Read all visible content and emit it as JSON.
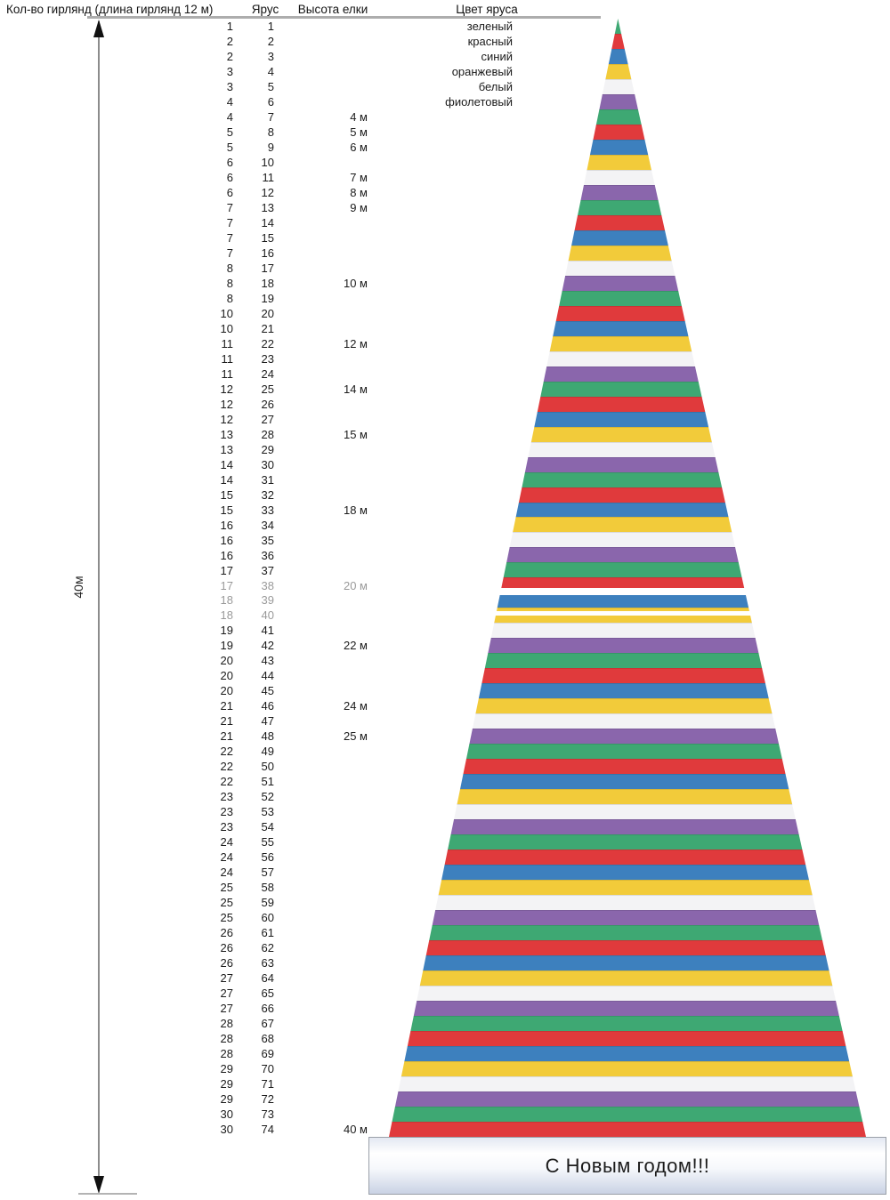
{
  "header": {
    "garlands": "Кол-во гирлянд (длина гирлянд 12 м)",
    "tier": "Ярус",
    "height": "Высота елки",
    "color": "Цвет яруса"
  },
  "measure": {
    "label": "40м"
  },
  "banner": {
    "text": "С Новым годом!!!"
  },
  "tier_colors": {
    "names": [
      "зеленый",
      "красный",
      "синий",
      "оранжевый",
      "белый",
      "фиолетовый"
    ],
    "hex": [
      "#3EA873",
      "#E03A3C",
      "#3D80BE",
      "#F2CB3A",
      "#F3F3F5",
      "#8A66AC"
    ]
  },
  "table": {
    "tiers_total": 74,
    "garlands_by_tier": [
      1,
      2,
      2,
      3,
      3,
      4,
      4,
      5,
      5,
      6,
      6,
      6,
      7,
      7,
      7,
      7,
      8,
      8,
      8,
      10,
      10,
      11,
      11,
      11,
      12,
      12,
      12,
      13,
      13,
      14,
      14,
      15,
      15,
      16,
      16,
      16,
      17,
      17,
      18,
      18,
      19,
      19,
      20,
      20,
      20,
      21,
      21,
      21,
      22,
      22,
      22,
      23,
      23,
      23,
      24,
      24,
      24,
      25,
      25,
      25,
      26,
      26,
      26,
      27,
      27,
      27,
      28,
      28,
      28,
      29,
      29,
      29,
      30,
      30
    ],
    "height_labels": {
      "7": "4 м",
      "8": "5 м",
      "9": "6 м",
      "11": "7 м",
      "12": "8 м",
      "13": "9 м",
      "18": "10 м",
      "22": "12 м",
      "25": "14 м",
      "28": "15 м",
      "33": "18 м",
      "38": "20 м",
      "42": "22 м",
      "46": "24 м",
      "48": "25 м",
      "74": "40 м"
    }
  }
}
